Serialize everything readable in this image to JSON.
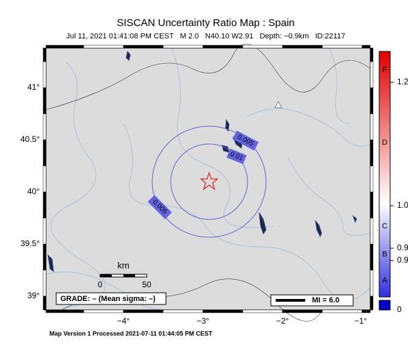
{
  "header": {
    "title": "SISCAN Uncertainty Ratio Map : Spain",
    "subtitle": "Jul 11, 2021 01:41:08 PM CEST   M 2.0   N40.10 W2.91   Depth: −0.9km   ID:22117"
  },
  "map": {
    "lat_labels": [
      "41°",
      "40.5°",
      "40°",
      "39.5°",
      "39°"
    ],
    "lon_labels": [
      "−4°",
      "−3°",
      "−2°",
      "−1°"
    ],
    "contour_labels": [
      "0.005",
      "0.01",
      "0.005"
    ],
    "scale": {
      "unit": "km",
      "ticks": [
        "0",
        "50"
      ]
    },
    "grade": "GRADE: – (Mean sigma: –)",
    "mi": "MI = 6.0"
  },
  "colorbar": {
    "letters": [
      "F",
      "D",
      "C",
      "B",
      "A"
    ],
    "labels": [
      "1.2",
      "1.0",
      "0.9",
      "0.9",
      "0"
    ]
  },
  "footer": "Map Version 1 Processed 2021-07-11 01:44:05 PM CEST"
}
